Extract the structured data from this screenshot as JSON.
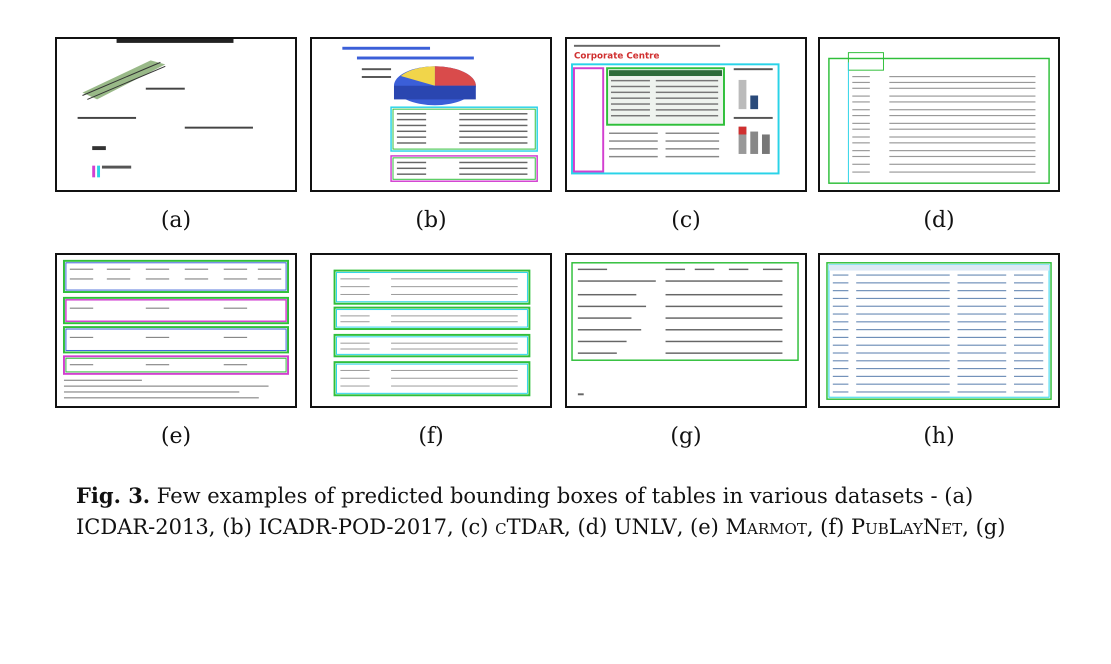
{
  "figure": {
    "panels": [
      {
        "id": "a",
        "label": "(a)"
      },
      {
        "id": "b",
        "label": "(b)"
      },
      {
        "id": "c",
        "label": "(c)",
        "heading": "Corporate Centre"
      },
      {
        "id": "d",
        "label": "(d)"
      },
      {
        "id": "e",
        "label": "(e)"
      },
      {
        "id": "f",
        "label": "(f)"
      },
      {
        "id": "g",
        "label": "(g)"
      },
      {
        "id": "h",
        "label": "(h)"
      }
    ],
    "caption": {
      "fig_label": "Fig. 3.",
      "text_intro": " Few examples of predicted bounding boxes of tables in various datasets - (a) ",
      "ds_a": "ICDAR-2013",
      "sep_b": ", (b) ",
      "ds_b": "ICADR-POD-2017",
      "sep_c": ", (c) ",
      "ds_c": "cTDaR",
      "sep_d": ", (d) ",
      "ds_d": "UNLV",
      "sep_e": ", (e) ",
      "ds_e": "Marmot",
      "sep_f": ", (f) ",
      "ds_f": "PubLayNet",
      "sep_g": ", (g)"
    },
    "colors": {
      "green": "#2fbf3a",
      "cyan": "#29d3e8",
      "magenta": "#d23fd0",
      "blue": "#3b5fd8",
      "frame": "#111111"
    }
  }
}
